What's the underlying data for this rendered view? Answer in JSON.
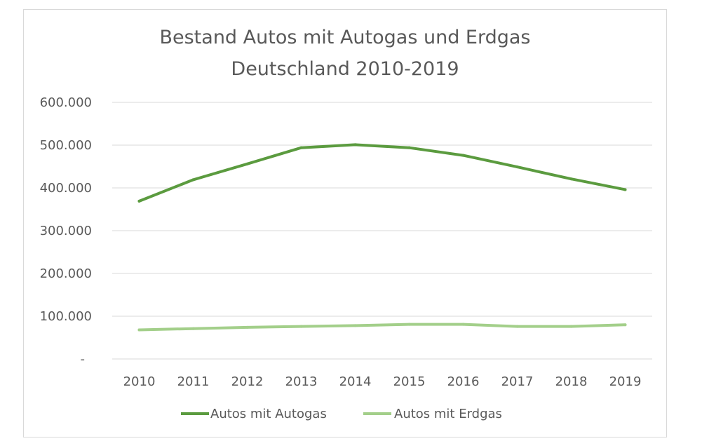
{
  "chart_data": {
    "type": "line",
    "title": [
      "Bestand Autos mit Autogas und Erdgas",
      "Deutschland 2010-2019"
    ],
    "xlabel": "",
    "ylabel": "",
    "categories": [
      "2010",
      "2011",
      "2012",
      "2013",
      "2014",
      "2015",
      "2016",
      "2017",
      "2018",
      "2019"
    ],
    "y_ticks": [
      {
        "value": 0,
        "label": "-"
      },
      {
        "value": 100000,
        "label": "100.000"
      },
      {
        "value": 200000,
        "label": "200.000"
      },
      {
        "value": 300000,
        "label": "300.000"
      },
      {
        "value": 400000,
        "label": "400.000"
      },
      {
        "value": 500000,
        "label": "500.000"
      },
      {
        "value": 600000,
        "label": "600.000"
      }
    ],
    "ylim": [
      0,
      600000
    ],
    "grid": true,
    "legend_position": "bottom",
    "series": [
      {
        "name": "Autos mit Autogas",
        "color": "#5b9b3f",
        "values": [
          369000,
          419000,
          456000,
          494000,
          501000,
          494000,
          476000,
          449000,
          421000,
          396000
        ]
      },
      {
        "name": "Autos mit Erdgas",
        "color": "#a3cf8a",
        "values": [
          68000,
          71000,
          74000,
          76000,
          78000,
          81000,
          81000,
          76000,
          76000,
          80000
        ]
      }
    ]
  }
}
